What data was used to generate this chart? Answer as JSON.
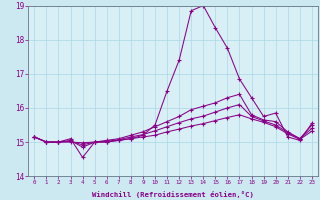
{
  "xlabel": "Windchill (Refroidissement éolien,°C)",
  "background_color": "#cce8f0",
  "plot_bg_color": "#d8eff5",
  "line_color": "#880088",
  "xlim": [
    -0.5,
    23.5
  ],
  "ylim": [
    14,
    19
  ],
  "yticks": [
    14,
    15,
    16,
    17,
    18,
    19
  ],
  "xticks": [
    0,
    1,
    2,
    3,
    4,
    5,
    6,
    7,
    8,
    9,
    10,
    11,
    12,
    13,
    14,
    15,
    16,
    17,
    18,
    19,
    20,
    21,
    22,
    23
  ],
  "series": [
    [
      15.15,
      15.0,
      15.0,
      15.1,
      14.55,
      15.0,
      15.0,
      15.05,
      15.1,
      15.2,
      15.5,
      16.5,
      17.4,
      18.85,
      19.0,
      18.35,
      17.75,
      16.85,
      16.3,
      15.75,
      15.85,
      15.15,
      15.05,
      15.55
    ],
    [
      15.15,
      15.0,
      15.0,
      15.05,
      14.85,
      15.0,
      15.05,
      15.1,
      15.2,
      15.3,
      15.45,
      15.6,
      15.75,
      15.95,
      16.05,
      16.15,
      16.3,
      16.4,
      15.8,
      15.65,
      15.6,
      15.3,
      15.1,
      15.5
    ],
    [
      15.15,
      15.0,
      15.0,
      15.02,
      14.92,
      15.0,
      15.02,
      15.07,
      15.15,
      15.22,
      15.33,
      15.45,
      15.57,
      15.68,
      15.76,
      15.88,
      16.0,
      16.1,
      15.75,
      15.62,
      15.5,
      15.28,
      15.1,
      15.4
    ],
    [
      15.15,
      15.0,
      15.0,
      15.0,
      14.98,
      15.0,
      15.01,
      15.05,
      15.1,
      15.15,
      15.2,
      15.3,
      15.38,
      15.47,
      15.54,
      15.63,
      15.72,
      15.8,
      15.68,
      15.58,
      15.45,
      15.24,
      15.08,
      15.32
    ]
  ]
}
